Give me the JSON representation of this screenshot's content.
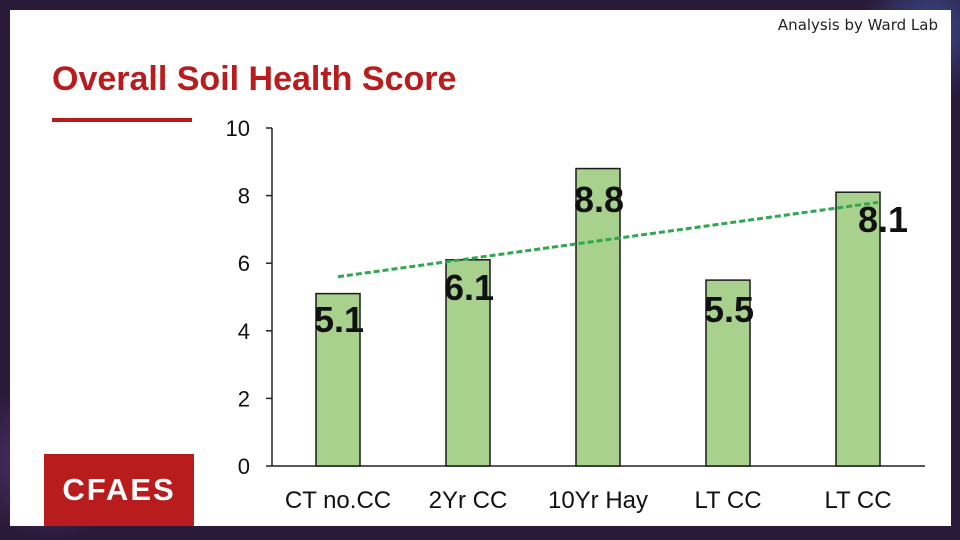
{
  "credit": "Analysis by Ward Lab",
  "title": "Overall Soil Health Score",
  "logo_text": "CFAES",
  "colors": {
    "title": "#b91c1c",
    "bar_fill": "#a9d18e",
    "bar_stroke": "#1a1a1a",
    "trendline": "#2ea84f",
    "logo_bg": "#b91c1c"
  },
  "chart_data": {
    "type": "bar",
    "categories": [
      "CT no.CC",
      "2Yr CC",
      "10Yr Hay",
      "LT CC",
      "LT CC"
    ],
    "values": [
      5.1,
      6.1,
      8.8,
      5.5,
      8.1
    ],
    "data_labels": [
      "5.1",
      "6.1",
      "8.8",
      "5.5",
      "8.1"
    ],
    "ylim": [
      0,
      10
    ],
    "yticks": [
      0,
      2,
      4,
      6,
      8,
      10
    ],
    "trendline": {
      "style": "dashed",
      "type": "linear",
      "start": 5.6,
      "end": 7.8
    },
    "grid": false
  }
}
